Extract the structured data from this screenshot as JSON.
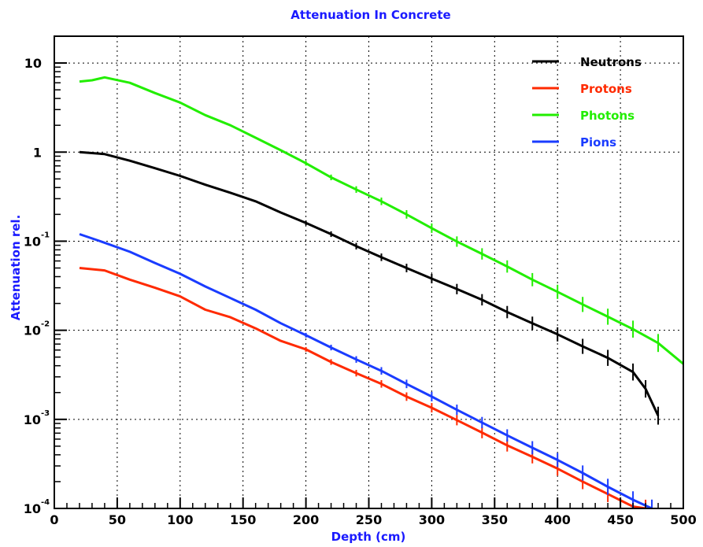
{
  "chart_data": {
    "type": "line",
    "title": "Attenuation In Concrete",
    "xlabel": "Depth (cm)",
    "ylabel": "Attenuation rel.",
    "xlim": [
      0,
      500
    ],
    "ylim": [
      0.0001,
      20
    ],
    "yscale": "log",
    "grid": true,
    "legend": "top-right",
    "x_ticks": [
      "0",
      "50",
      "100",
      "150",
      "200",
      "250",
      "300",
      "350",
      "400",
      "450",
      "500"
    ],
    "y_ticks": [
      {
        "base": "10",
        "exp": "",
        "value": 10
      },
      {
        "base": "1",
        "exp": "",
        "value": 1
      },
      {
        "base": "10",
        "exp": "-1",
        "value": 0.1
      },
      {
        "base": "10",
        "exp": "-2",
        "value": 0.01
      },
      {
        "base": "10",
        "exp": "-3",
        "value": 0.001
      },
      {
        "base": "10",
        "exp": "-4",
        "value": 0.0001
      }
    ],
    "colors": {
      "title": "#1a1aff",
      "axis_label": "#1a1aff"
    },
    "series": [
      {
        "name": "Neutrons",
        "color": "#000000",
        "x": [
          20,
          40,
          60,
          80,
          100,
          120,
          140,
          160,
          180,
          200,
          220,
          240,
          260,
          280,
          300,
          320,
          340,
          360,
          380,
          400,
          420,
          440,
          460,
          470,
          480
        ],
        "y": [
          1.0,
          0.95,
          0.8,
          0.66,
          0.54,
          0.43,
          0.35,
          0.28,
          0.21,
          0.16,
          0.12,
          0.088,
          0.066,
          0.05,
          0.038,
          0.029,
          0.022,
          0.016,
          0.012,
          0.009,
          0.0066,
          0.0049,
          0.0034,
          0.0022,
          0.0011
        ]
      },
      {
        "name": "Protons",
        "color": "#ff2a00",
        "x": [
          20,
          40,
          60,
          80,
          100,
          120,
          140,
          160,
          180,
          200,
          220,
          240,
          260,
          280,
          300,
          320,
          340,
          360,
          380,
          400,
          420,
          440,
          460,
          470
        ],
        "y": [
          0.05,
          0.047,
          0.037,
          0.03,
          0.024,
          0.017,
          0.014,
          0.0105,
          0.0076,
          0.0061,
          0.0044,
          0.0033,
          0.0025,
          0.0018,
          0.00135,
          0.00098,
          0.00071,
          0.00051,
          0.00038,
          0.00028,
          0.0002,
          0.000145,
          0.000105,
          0.0001
        ]
      },
      {
        "name": "Photons",
        "color": "#22ee00",
        "x": [
          20,
          30,
          40,
          60,
          80,
          100,
          120,
          140,
          160,
          180,
          200,
          220,
          240,
          260,
          280,
          300,
          320,
          340,
          360,
          380,
          400,
          420,
          440,
          460,
          480,
          500
        ],
        "y": [
          6.2,
          6.4,
          6.9,
          6.0,
          4.6,
          3.6,
          2.6,
          2.0,
          1.45,
          1.05,
          0.75,
          0.52,
          0.38,
          0.28,
          0.2,
          0.14,
          0.099,
          0.072,
          0.052,
          0.037,
          0.027,
          0.0195,
          0.0142,
          0.0103,
          0.0072,
          0.0042
        ]
      },
      {
        "name": "Pions",
        "color": "#1a3cff",
        "x": [
          20,
          40,
          60,
          80,
          100,
          120,
          140,
          160,
          180,
          200,
          220,
          240,
          260,
          280,
          300,
          320,
          340,
          360,
          380,
          400,
          420,
          440,
          460,
          475
        ],
        "y": [
          0.12,
          0.096,
          0.076,
          0.057,
          0.043,
          0.031,
          0.023,
          0.017,
          0.012,
          0.0088,
          0.0064,
          0.0047,
          0.0035,
          0.0025,
          0.0018,
          0.00128,
          0.00092,
          0.00066,
          0.00048,
          0.00035,
          0.00025,
          0.000175,
          0.000125,
          0.0001
        ]
      }
    ]
  }
}
